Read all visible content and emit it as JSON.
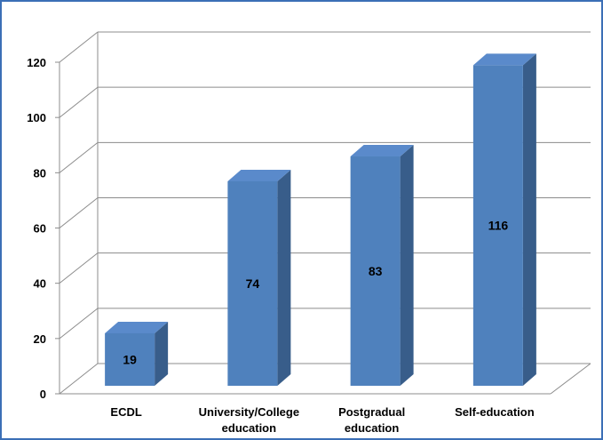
{
  "chart_data": {
    "type": "bar",
    "style": "3d-column",
    "categories": [
      [
        "ECDL"
      ],
      [
        "University/College",
        "education"
      ],
      [
        "Postgradual",
        "education"
      ],
      [
        "Self-education"
      ]
    ],
    "values": [
      19,
      74,
      83,
      116
    ],
    "data_labels": [
      "19",
      "74",
      "83",
      "116"
    ],
    "ylim": [
      0,
      120
    ],
    "yticks": [
      0,
      20,
      40,
      60,
      80,
      100,
      120
    ],
    "grid": true,
    "legend": "none",
    "colors": {
      "bar_front": "#4f81bd",
      "bar_side": "#385d8a",
      "bar_top": "#5a8acb",
      "frame": "#3b6fb6",
      "grid": "#8c8c8c"
    }
  }
}
